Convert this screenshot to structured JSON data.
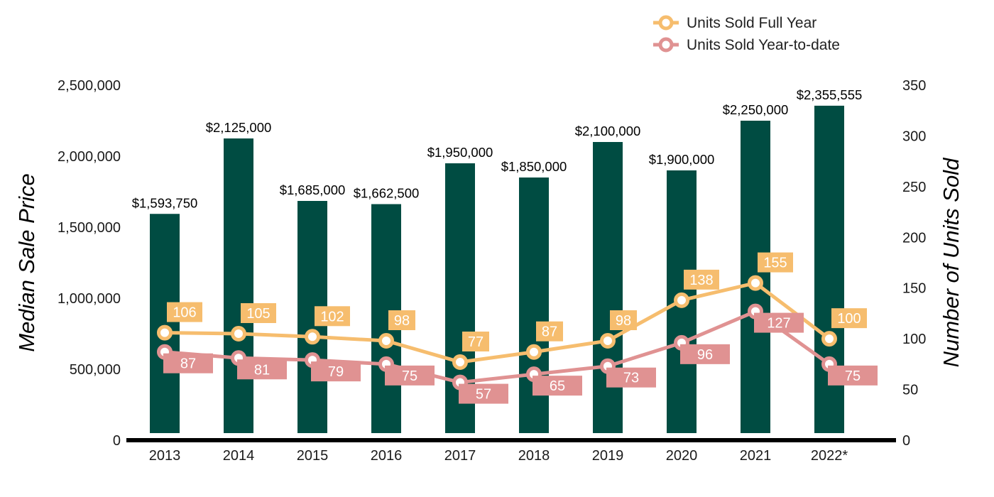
{
  "chart_data": {
    "type": "bar",
    "categories": [
      "2013",
      "2014",
      "2015",
      "2016",
      "2017",
      "2018",
      "2019",
      "2020",
      "2021",
      "2022*"
    ],
    "series": [
      {
        "name": "Median Sale Price",
        "type": "bar",
        "axis": "left",
        "color": "#004c42",
        "values": [
          1593750,
          2125000,
          1685000,
          1662500,
          1950000,
          1850000,
          2100000,
          1900000,
          2250000,
          2355555
        ],
        "labels": [
          "$1,593,750",
          "$2,125,000",
          "$1,685,000",
          "$1,662,500",
          "$1,950,000",
          "$1,850,000",
          "$2,100,000",
          "$1,900,000",
          "$2,250,000",
          "$2,355,555"
        ]
      },
      {
        "name": "Units Sold Full Year",
        "type": "line",
        "axis": "right",
        "color": "#f6bd6e",
        "values": [
          106,
          105,
          102,
          98,
          77,
          87,
          98,
          138,
          155,
          100
        ]
      },
      {
        "name": "Units Sold Year-to-date",
        "type": "line",
        "axis": "right",
        "color": "#e09292",
        "values": [
          87,
          81,
          79,
          75,
          57,
          65,
          73,
          96,
          127,
          75
        ]
      }
    ],
    "y_left": {
      "label": "Median Sale Price",
      "range": [
        0,
        2500000
      ],
      "ticks": [
        "0",
        "500,000",
        "1,000,000",
        "1,500,000",
        "2,000,000",
        "2,500,000"
      ]
    },
    "y_right": {
      "label": "Number of Units Sold",
      "range": [
        0,
        350
      ],
      "ticks": [
        "0",
        "50",
        "100",
        "150",
        "200",
        "250",
        "300",
        "350"
      ]
    },
    "legend": {
      "position": "top-right",
      "items": [
        "Units Sold Full Year",
        "Units Sold Year-to-date"
      ]
    },
    "grid": false
  }
}
